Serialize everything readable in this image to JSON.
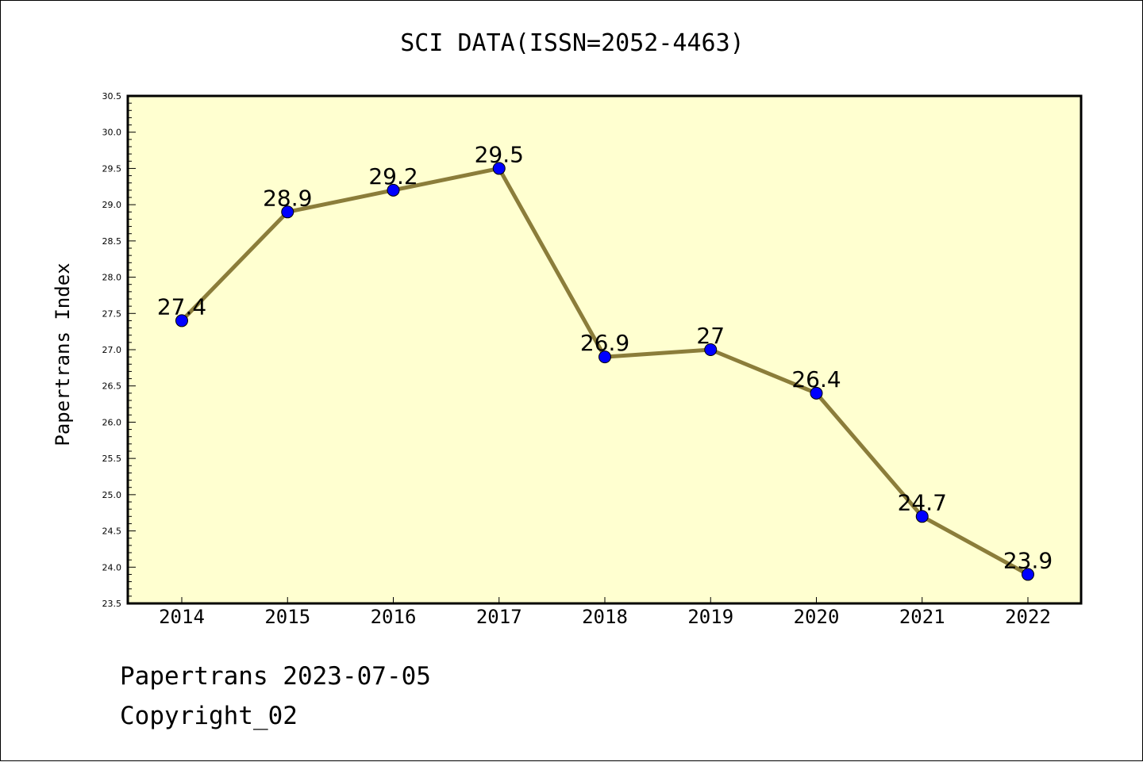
{
  "chart_data": {
    "type": "line",
    "title": "SCI DATA(ISSN=2052-4463)",
    "xlabel": "",
    "ylabel": "Papertrans Index",
    "categories": [
      "2014",
      "2015",
      "2016",
      "2017",
      "2018",
      "2019",
      "2020",
      "2021",
      "2022"
    ],
    "series": [
      {
        "values": [
          27.4,
          28.9,
          29.2,
          29.5,
          26.9,
          27,
          26.4,
          24.7,
          23.9
        ],
        "data_labels": [
          "27.4",
          "28.9",
          "29.2",
          "29.5",
          "26.9",
          "27",
          "26.4",
          "24.7",
          "23.9"
        ]
      }
    ],
    "ylim": [
      23.5,
      30.5
    ],
    "yticks": [
      "23.5",
      "24.0",
      "24.5",
      "25.0",
      "25.5",
      "26.0",
      "26.5",
      "27.0",
      "27.5",
      "28.0",
      "28.5",
      "29.0",
      "29.5",
      "30.0",
      "30.5"
    ],
    "grid": false,
    "colors": {
      "line": "#8b7d3a",
      "marker": "#0000ff",
      "plot_background": "#ffffd0"
    }
  },
  "footer": {
    "line1": "Papertrans 2023-07-05",
    "line2": "Copyright_02"
  }
}
